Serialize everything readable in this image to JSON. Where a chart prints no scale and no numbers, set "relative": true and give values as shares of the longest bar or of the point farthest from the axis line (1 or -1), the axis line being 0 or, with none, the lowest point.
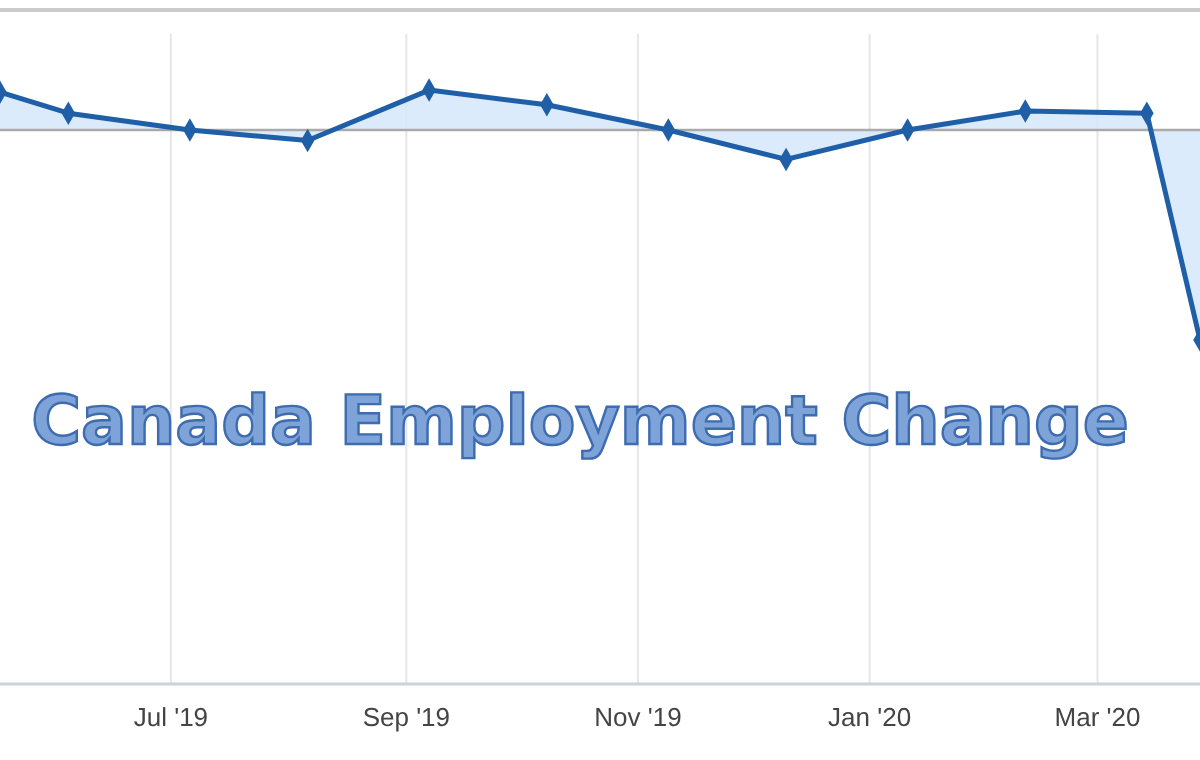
{
  "chart_data": {
    "type": "area",
    "title": "Canada Employment Change",
    "relative": true,
    "x": [
      "2019-05-17",
      "2019-06-04",
      "2019-07-06",
      "2019-08-06",
      "2019-09-07",
      "2019-10-08",
      "2019-11-09",
      "2019-12-10",
      "2020-01-11",
      "2020-02-11",
      "2020-03-14",
      "2020-03-28"
    ],
    "series": [
      {
        "color": "#1f5fa8",
        "values": [
          0.18,
          0.08,
          0,
          -0.05,
          0.19,
          0.12,
          0,
          -0.14,
          0,
          0.09,
          0.08,
          -1
        ]
      }
    ],
    "xlim": [
      "2019-05-17",
      "2020-03-28"
    ],
    "xticks": [
      {
        "value": "2019-07-01",
        "label": "Jul '19"
      },
      {
        "value": "2019-09-01",
        "label": "Sep '19"
      },
      {
        "value": "2019-11-01",
        "label": "Nov '19"
      },
      {
        "value": "2020-01-01",
        "label": "Jan '20"
      },
      {
        "value": "2020-03-01",
        "label": "Mar '20"
      }
    ],
    "grid": "x",
    "marker": "diamond",
    "line_style": "solid"
  }
}
